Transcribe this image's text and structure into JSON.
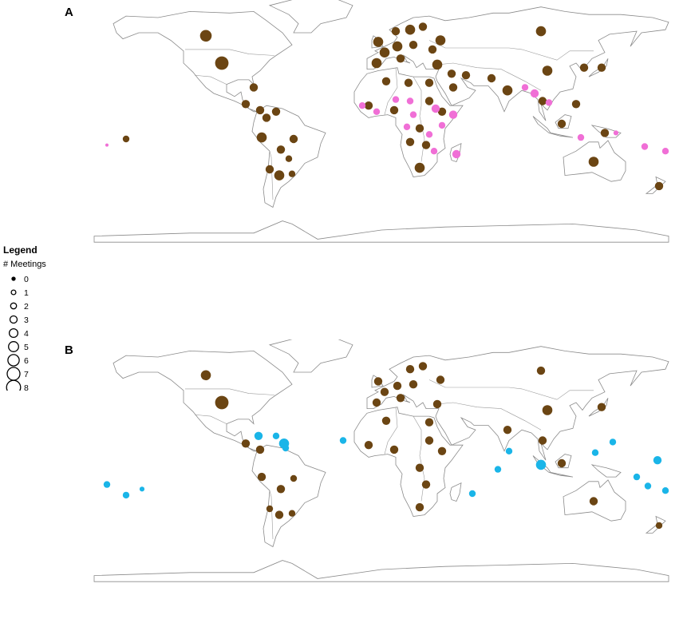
{
  "panels": {
    "a": {
      "label": "A"
    },
    "b": {
      "label": "B"
    }
  },
  "legend": {
    "title": "Legend",
    "subtitle": "# Meetings",
    "items": [
      "0",
      "1",
      "2",
      "3",
      "4",
      "5",
      "6",
      "7",
      "8"
    ]
  },
  "colors": {
    "default_country": "#6b4513",
    "highlight_a": "#f06fd6",
    "highlight_b": "#1ab5e8",
    "land_outline": "#8a8a8a",
    "background": "#ffffff"
  },
  "chart_data": [
    {
      "type": "scatter",
      "map": "world",
      "title": "A",
      "size_variable": "# Meetings",
      "series": [
        {
          "group": "default",
          "color": "#6b4513",
          "points": [
            {
              "lon": -100,
              "lat": 40,
              "m": 7
            },
            {
              "lon": -110,
              "lat": 58,
              "m": 6
            },
            {
              "lon": -80,
              "lat": 24,
              "m": 4
            },
            {
              "lon": -85,
              "lat": 13,
              "m": 4
            },
            {
              "lon": -76,
              "lat": 9,
              "m": 4
            },
            {
              "lon": -72,
              "lat": 4,
              "m": 4
            },
            {
              "lon": -66,
              "lat": 8,
              "m": 4
            },
            {
              "lon": -75,
              "lat": -9,
              "m": 5
            },
            {
              "lon": -63,
              "lat": -17,
              "m": 4
            },
            {
              "lon": -55,
              "lat": -10,
              "m": 4
            },
            {
              "lon": -58,
              "lat": -23,
              "m": 3
            },
            {
              "lon": -64,
              "lat": -34,
              "m": 5
            },
            {
              "lon": -70,
              "lat": -30,
              "m": 4
            },
            {
              "lon": -56,
              "lat": -33,
              "m": 3
            },
            {
              "lon": 2,
              "lat": 47,
              "m": 5
            },
            {
              "lon": 10,
              "lat": 51,
              "m": 5
            },
            {
              "lon": -3,
              "lat": 40,
              "m": 5
            },
            {
              "lon": 12,
              "lat": 43,
              "m": 4
            },
            {
              "lon": -2,
              "lat": 54,
              "m": 5
            },
            {
              "lon": 18,
              "lat": 62,
              "m": 5
            },
            {
              "lon": 9,
              "lat": 61,
              "m": 4
            },
            {
              "lon": 26,
              "lat": 64,
              "m": 4
            },
            {
              "lon": 20,
              "lat": 52,
              "m": 4
            },
            {
              "lon": 37,
              "lat": 55,
              "m": 5
            },
            {
              "lon": 100,
              "lat": 61,
              "m": 5
            },
            {
              "lon": 32,
              "lat": 49,
              "m": 4
            },
            {
              "lon": 35,
              "lat": 39,
              "m": 5
            },
            {
              "lon": 3,
              "lat": 28,
              "m": 4
            },
            {
              "lon": 17,
              "lat": 27,
              "m": 4
            },
            {
              "lon": 30,
              "lat": 27,
              "m": 4
            },
            {
              "lon": 44,
              "lat": 33,
              "m": 4
            },
            {
              "lon": 53,
              "lat": 32,
              "m": 4
            },
            {
              "lon": 45,
              "lat": 24,
              "m": 4
            },
            {
              "lon": 69,
              "lat": 30,
              "m": 4
            },
            {
              "lon": 79,
              "lat": 22,
              "m": 5
            },
            {
              "lon": 104,
              "lat": 35,
              "m": 5
            },
            {
              "lon": 138,
              "lat": 37,
              "m": 4
            },
            {
              "lon": 127,
              "lat": 37,
              "m": 4
            },
            {
              "lon": 133,
              "lat": -25,
              "m": 5
            },
            {
              "lon": 174,
              "lat": -41,
              "m": 4
            },
            {
              "lon": -8,
              "lat": 12,
              "m": 4
            },
            {
              "lon": 8,
              "lat": 9,
              "m": 4
            },
            {
              "lon": 24,
              "lat": -29,
              "m": 5
            },
            {
              "lon": 28,
              "lat": -14,
              "m": 4
            },
            {
              "lon": 18,
              "lat": -12,
              "m": 4
            },
            {
              "lon": 24,
              "lat": -3,
              "m": 4
            },
            {
              "lon": 38,
              "lat": 8,
              "m": 4
            },
            {
              "lon": 30,
              "lat": 15,
              "m": 4
            },
            {
              "lon": 122,
              "lat": 13,
              "m": 4
            },
            {
              "lon": 113,
              "lat": 0,
              "m": 4
            },
            {
              "lon": 101,
              "lat": 15,
              "m": 4
            },
            {
              "lon": 140,
              "lat": -6,
              "m": 4
            },
            {
              "lon": -160,
              "lat": -10,
              "m": 3
            }
          ]
        },
        {
          "group": "highlighted",
          "color": "#f06fd6",
          "points": [
            {
              "lon": -12,
              "lat": 12,
              "m": 3
            },
            {
              "lon": -3,
              "lat": 8,
              "m": 3
            },
            {
              "lon": 9,
              "lat": 16,
              "m": 3
            },
            {
              "lon": 20,
              "lat": 6,
              "m": 3
            },
            {
              "lon": 18,
              "lat": 15,
              "m": 3
            },
            {
              "lon": 34,
              "lat": 10,
              "m": 4
            },
            {
              "lon": 45,
              "lat": 6,
              "m": 4
            },
            {
              "lon": 38,
              "lat": -1,
              "m": 3
            },
            {
              "lon": 30,
              "lat": -7,
              "m": 3
            },
            {
              "lon": 47,
              "lat": -20,
              "m": 4
            },
            {
              "lon": 33,
              "lat": -18,
              "m": 3
            },
            {
              "lon": 16,
              "lat": -2,
              "m": 3
            },
            {
              "lon": 90,
              "lat": 24,
              "m": 3
            },
            {
              "lon": 96,
              "lat": 20,
              "m": 4
            },
            {
              "lon": 105,
              "lat": 14,
              "m": 3
            },
            {
              "lon": 125,
              "lat": -9,
              "m": 3
            },
            {
              "lon": 165,
              "lat": -15,
              "m": 3
            },
            {
              "lon": 178,
              "lat": -18,
              "m": 3
            },
            {
              "lon": 147,
              "lat": -6,
              "m": 2
            },
            {
              "lon": -172,
              "lat": -14,
              "m": 1
            }
          ]
        }
      ]
    },
    {
      "type": "scatter",
      "map": "world",
      "title": "B",
      "size_variable": "# Meetings",
      "series": [
        {
          "group": "default",
          "color": "#6b4513",
          "points": [
            {
              "lon": -100,
              "lat": 40,
              "m": 7
            },
            {
              "lon": -110,
              "lat": 58,
              "m": 5
            },
            {
              "lon": -85,
              "lat": 13,
              "m": 4
            },
            {
              "lon": -76,
              "lat": 9,
              "m": 4
            },
            {
              "lon": -75,
              "lat": -9,
              "m": 4
            },
            {
              "lon": -63,
              "lat": -17,
              "m": 4
            },
            {
              "lon": -55,
              "lat": -10,
              "m": 3
            },
            {
              "lon": -64,
              "lat": -34,
              "m": 4
            },
            {
              "lon": -70,
              "lat": -30,
              "m": 3
            },
            {
              "lon": -56,
              "lat": -33,
              "m": 3
            },
            {
              "lon": 2,
              "lat": 47,
              "m": 4
            },
            {
              "lon": 10,
              "lat": 51,
              "m": 4
            },
            {
              "lon": -3,
              "lat": 40,
              "m": 4
            },
            {
              "lon": 12,
              "lat": 43,
              "m": 4
            },
            {
              "lon": -2,
              "lat": 54,
              "m": 4
            },
            {
              "lon": 18,
              "lat": 62,
              "m": 4
            },
            {
              "lon": 26,
              "lat": 64,
              "m": 4
            },
            {
              "lon": 20,
              "lat": 52,
              "m": 4
            },
            {
              "lon": 37,
              "lat": 55,
              "m": 4
            },
            {
              "lon": 100,
              "lat": 61,
              "m": 4
            },
            {
              "lon": 35,
              "lat": 39,
              "m": 4
            },
            {
              "lon": 3,
              "lat": 28,
              "m": 4
            },
            {
              "lon": 30,
              "lat": 27,
              "m": 4
            },
            {
              "lon": 79,
              "lat": 22,
              "m": 4
            },
            {
              "lon": 104,
              "lat": 35,
              "m": 5
            },
            {
              "lon": 138,
              "lat": 37,
              "m": 4
            },
            {
              "lon": 133,
              "lat": -25,
              "m": 4
            },
            {
              "lon": 174,
              "lat": -41,
              "m": 3
            },
            {
              "lon": -8,
              "lat": 12,
              "m": 4
            },
            {
              "lon": 8,
              "lat": 9,
              "m": 4
            },
            {
              "lon": 24,
              "lat": -29,
              "m": 4
            },
            {
              "lon": 28,
              "lat": -14,
              "m": 4
            },
            {
              "lon": 24,
              "lat": -3,
              "m": 4
            },
            {
              "lon": 38,
              "lat": 8,
              "m": 4
            },
            {
              "lon": 30,
              "lat": 15,
              "m": 4
            },
            {
              "lon": 101,
              "lat": 15,
              "m": 4
            },
            {
              "lon": 113,
              "lat": 0,
              "m": 4
            }
          ]
        },
        {
          "group": "highlighted",
          "color": "#1ab5e8",
          "points": [
            {
              "lon": -77,
              "lat": 18,
              "m": 4
            },
            {
              "lon": -66,
              "lat": 18,
              "m": 3
            },
            {
              "lon": -61,
              "lat": 13,
              "m": 5
            },
            {
              "lon": -60,
              "lat": 10,
              "m": 3
            },
            {
              "lon": -24,
              "lat": 15,
              "m": 3
            },
            {
              "lon": 57,
              "lat": -20,
              "m": 3
            },
            {
              "lon": 73,
              "lat": -4,
              "m": 3
            },
            {
              "lon": 80,
              "lat": 8,
              "m": 3
            },
            {
              "lon": 100,
              "lat": -1,
              "m": 5
            },
            {
              "lon": 134,
              "lat": 7,
              "m": 3
            },
            {
              "lon": 145,
              "lat": 14,
              "m": 3
            },
            {
              "lon": 160,
              "lat": -9,
              "m": 3
            },
            {
              "lon": 167,
              "lat": -15,
              "m": 3
            },
            {
              "lon": 173,
              "lat": 2,
              "m": 4
            },
            {
              "lon": 178,
              "lat": -18,
              "m": 3
            },
            {
              "lon": -172,
              "lat": -14,
              "m": 3
            },
            {
              "lon": -160,
              "lat": -21,
              "m": 3
            },
            {
              "lon": -150,
              "lat": -17,
              "m": 2
            }
          ]
        }
      ]
    }
  ]
}
